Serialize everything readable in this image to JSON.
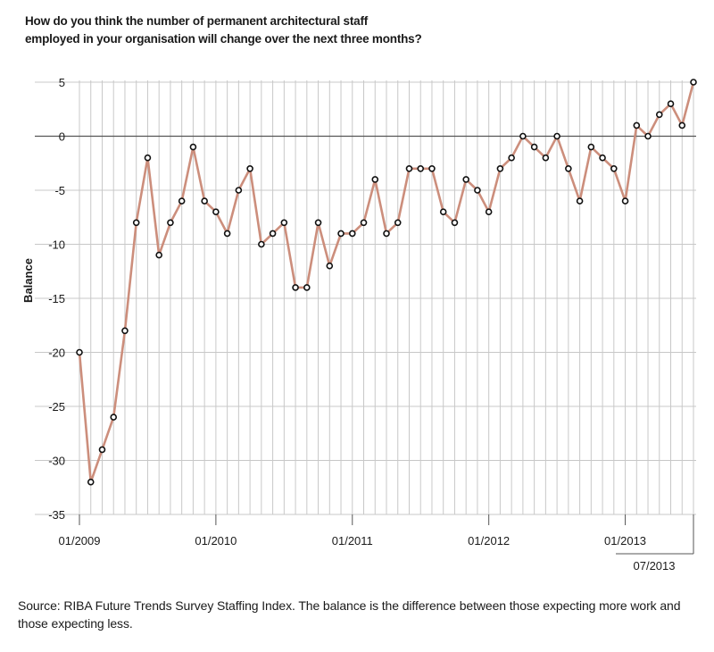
{
  "title": "How do you think the number of permanent architectural staff\nemployed in your organisation will change over the next three months?",
  "source": "Source: RIBA Future Trends Survey Staffing Index. The balance is the difference between those expecting more work and those expecting less.",
  "chart_data": {
    "type": "line",
    "ylabel": "Balance",
    "xlabel": "",
    "ylim": [
      -35,
      5
    ],
    "yticks": [
      5,
      0,
      -5,
      -10,
      -15,
      -20,
      -25,
      -30,
      -35
    ],
    "grid": true,
    "x_start": "01/2009",
    "x_end": "07/2013",
    "x_tick_labels": [
      {
        "label": "01/2009",
        "month_index": 0
      },
      {
        "label": "01/2010",
        "month_index": 12
      },
      {
        "label": "01/2011",
        "month_index": 24
      },
      {
        "label": "01/2012",
        "month_index": 36
      },
      {
        "label": "01/2013",
        "month_index": 48
      },
      {
        "label": "07/2013",
        "month_index": 54
      }
    ],
    "series": [
      {
        "color": "#cc8e7c",
        "marker_fill": "#ffffff",
        "marker_stroke": "#111111",
        "values": [
          -20,
          -32,
          -29,
          -26,
          -18,
          -8,
          -2,
          -11,
          -8,
          -6,
          -1,
          -6,
          -7,
          -9,
          -5,
          -3,
          -10,
          -9,
          -8,
          -14,
          -14,
          -8,
          -12,
          -9,
          -9,
          -8,
          -4,
          -9,
          -8,
          -3,
          -3,
          -3,
          -7,
          -8,
          -4,
          -5,
          -7,
          -3,
          -2,
          0,
          -1,
          -2,
          0,
          -3,
          -6,
          -1,
          -2,
          -3,
          -6,
          1,
          0,
          2,
          3,
          1,
          5
        ]
      }
    ]
  }
}
